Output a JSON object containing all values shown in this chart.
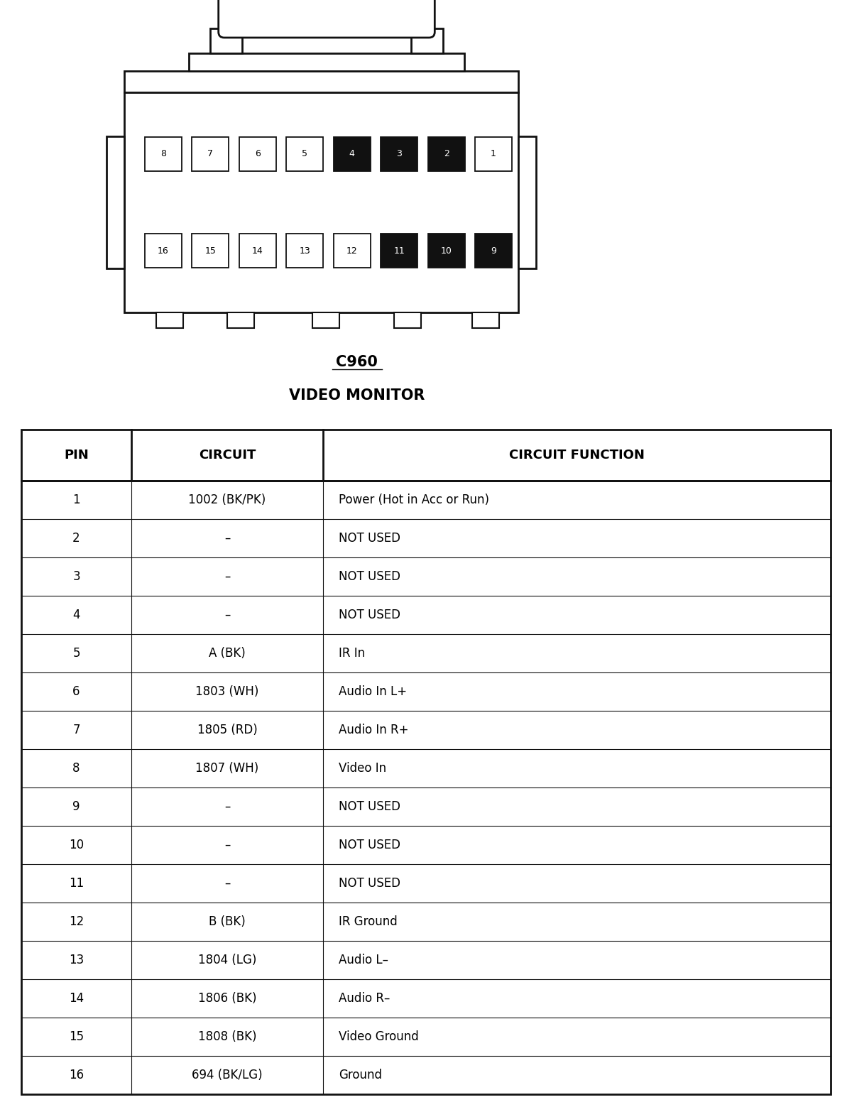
{
  "title1": "C960",
  "title2": "VIDEO MONITOR",
  "bg_color": "#ffffff",
  "table_header": [
    "PIN",
    "CIRCUIT",
    "CIRCUIT FUNCTION"
  ],
  "rows": [
    [
      "1",
      "1002 (BK/PK)",
      "Power (Hot in Acc or Run)"
    ],
    [
      "2",
      "–",
      "NOT USED"
    ],
    [
      "3",
      "–",
      "NOT USED"
    ],
    [
      "4",
      "–",
      "NOT USED"
    ],
    [
      "5",
      "A (BK)",
      "IR In"
    ],
    [
      "6",
      "1803 (WH)",
      "Audio In L+"
    ],
    [
      "7",
      "1805 (RD)",
      "Audio In R+"
    ],
    [
      "8",
      "1807 (WH)",
      "Video In"
    ],
    [
      "9",
      "–",
      "NOT USED"
    ],
    [
      "10",
      "–",
      "NOT USED"
    ],
    [
      "11",
      "–",
      "NOT USED"
    ],
    [
      "12",
      "B (BK)",
      "IR Ground"
    ],
    [
      "13",
      "1804 (LG)",
      "Audio L–"
    ],
    [
      "14",
      "1806 (BK)",
      "Audio R–"
    ],
    [
      "15",
      "1808 (BK)",
      "Video Ground"
    ],
    [
      "16",
      "694 (BK/LG)",
      "Ground"
    ]
  ],
  "top_row_pins": [
    "8",
    "7",
    "6",
    "5",
    "4",
    "3",
    "2",
    "1"
  ],
  "top_row_black": [
    "4",
    "3",
    "2"
  ],
  "bottom_row_pins": [
    "16",
    "15",
    "14",
    "13",
    "12",
    "11",
    "10",
    "9"
  ],
  "bottom_row_black": [
    "11",
    "10",
    "9"
  ],
  "pin_white_bg": "#ffffff",
  "pin_black_bg": "#111111",
  "pin_white_text": "#000000",
  "pin_black_text": "#ffffff"
}
